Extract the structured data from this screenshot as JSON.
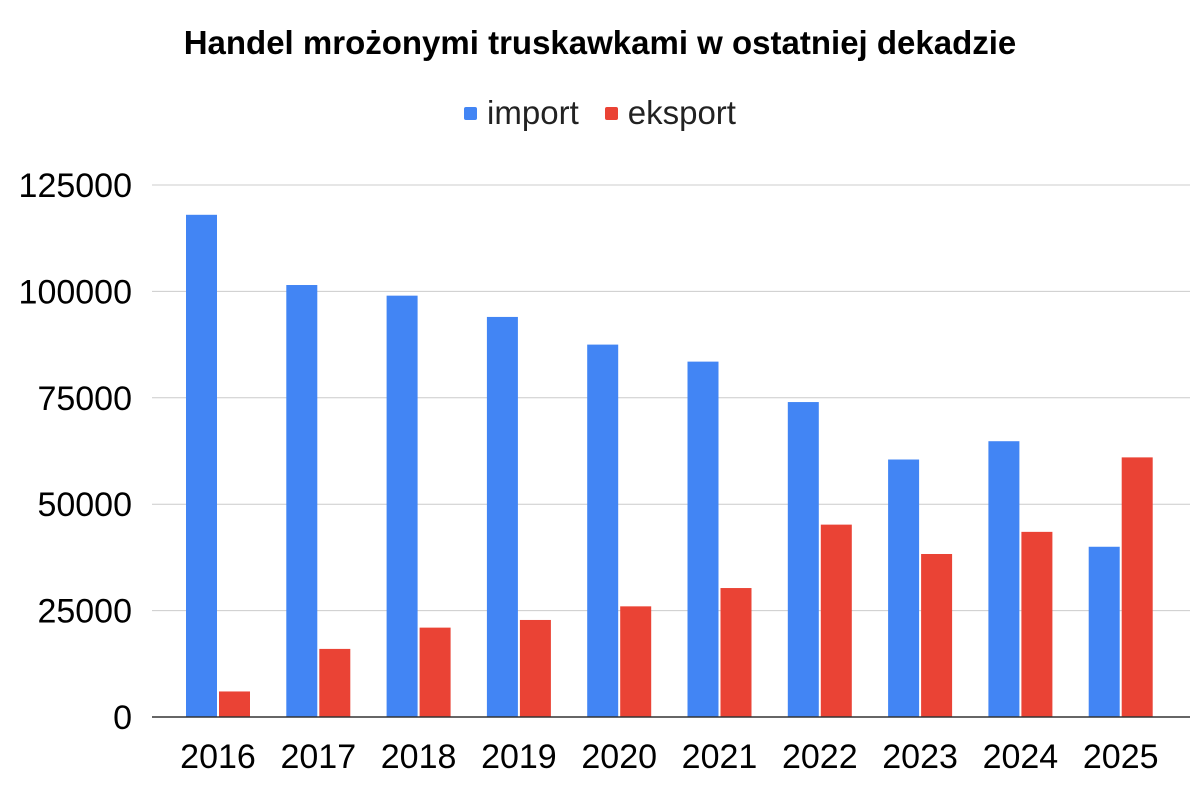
{
  "chart_data": {
    "type": "bar",
    "title": "Handel mrożonymi truskawkami w ostatniej dekadzie",
    "xlabel": "",
    "ylabel": "",
    "categories": [
      "2016",
      "2017",
      "2018",
      "2019",
      "2020",
      "2021",
      "2022",
      "2023",
      "2024",
      "2025"
    ],
    "series": [
      {
        "name": "import",
        "color": "#4285F4",
        "values": [
          118000,
          101500,
          99000,
          94000,
          87500,
          83500,
          74000,
          60500,
          64800,
          40000
        ]
      },
      {
        "name": "eksport",
        "color": "#EA4335",
        "values": [
          6000,
          16000,
          21000,
          22800,
          26000,
          30300,
          45200,
          38300,
          43500,
          61000
        ]
      }
    ],
    "ylim": [
      0,
      125000
    ],
    "yticks": [
      "0",
      "25000",
      "50000",
      "75000",
      "100000",
      "125000"
    ],
    "ytick_values": [
      0,
      25000,
      50000,
      75000,
      100000,
      125000
    ],
    "grid": true,
    "legend_position": "top-center"
  }
}
